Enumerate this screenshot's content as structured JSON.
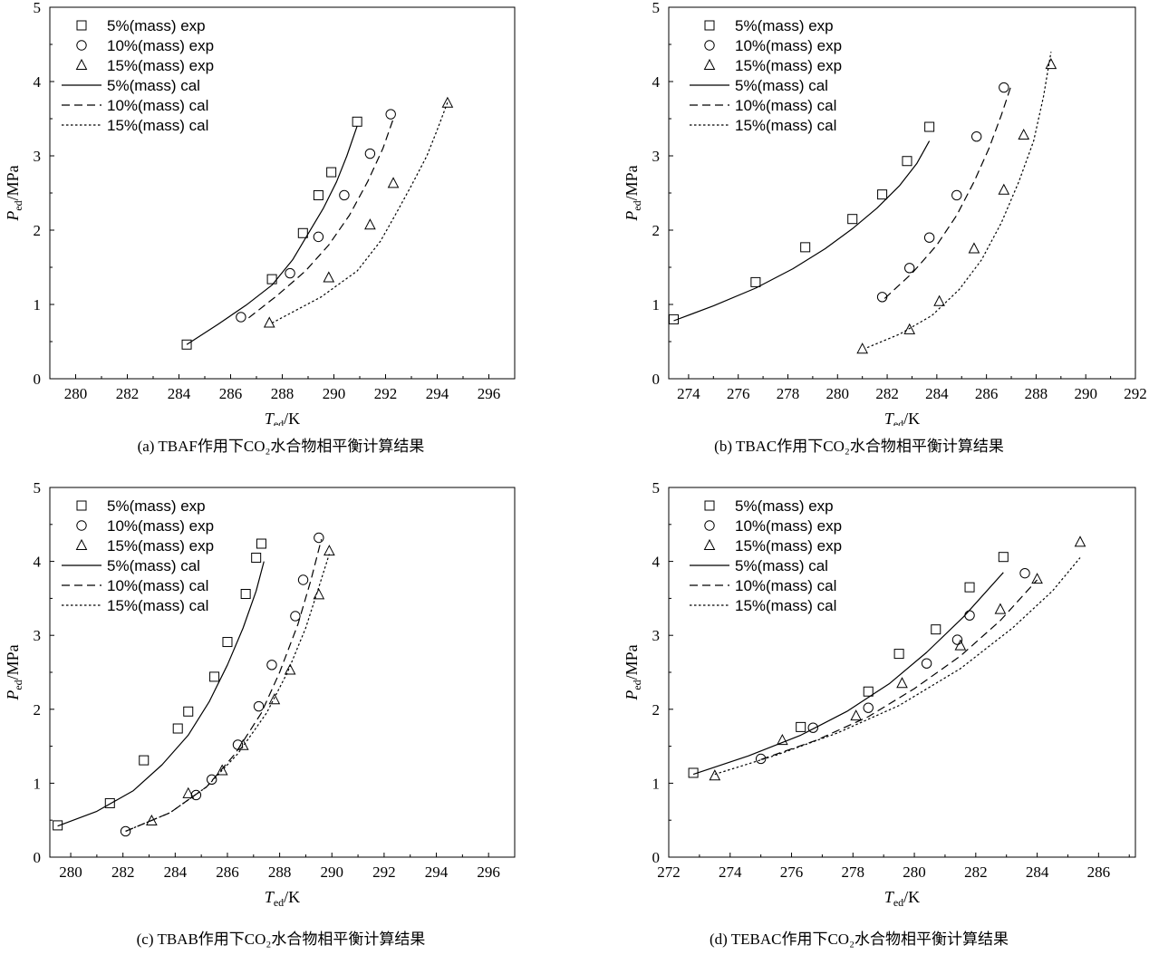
{
  "figure_labels": {
    "yaxis_main": "P",
    "yaxis_sub": "ed",
    "yaxis_unit": "/MPa",
    "xaxis_main": "T",
    "xaxis_sub": "ed",
    "xaxis_unit": "/K"
  },
  "chart_data": [
    {
      "id": "a",
      "type": "scatter+line",
      "caption": "(a) TBAF作用下CO₂水合物相平衡计算结果",
      "xlim": [
        279,
        297
      ],
      "ylim": [
        0,
        5
      ],
      "xticks": [
        280,
        282,
        284,
        286,
        288,
        290,
        292,
        294,
        296
      ],
      "yticks": [
        0,
        1,
        2,
        3,
        4,
        5
      ],
      "series": [
        {
          "name": "5%(mass) exp",
          "marker": "square",
          "x": [
            284.3,
            287.6,
            288.8,
            289.4,
            289.9,
            290.9
          ],
          "y": [
            0.46,
            1.34,
            1.96,
            2.47,
            2.78,
            3.46
          ]
        },
        {
          "name": "10%(mass) exp",
          "marker": "circle",
          "x": [
            286.4,
            288.3,
            289.4,
            290.4,
            291.4,
            292.2
          ],
          "y": [
            0.83,
            1.42,
            1.91,
            2.47,
            3.03,
            3.56
          ]
        },
        {
          "name": "15%(mass) exp",
          "marker": "triangle",
          "x": [
            287.5,
            289.8,
            291.4,
            292.3,
            294.4
          ],
          "y": [
            0.75,
            1.36,
            2.07,
            2.63,
            3.71
          ]
        },
        {
          "name": "5%(mass) cal",
          "line": "solid",
          "x": [
            284.3,
            285.5,
            286.6,
            287.6,
            288.4,
            289.0,
            289.6,
            290.1,
            290.5,
            290.9
          ],
          "y": [
            0.46,
            0.73,
            0.99,
            1.26,
            1.6,
            1.95,
            2.3,
            2.65,
            3.0,
            3.4
          ]
        },
        {
          "name": "10%(mass) cal",
          "line": "dashed",
          "x": [
            286.7,
            287.8,
            288.9,
            289.8,
            290.6,
            291.3,
            291.9,
            292.3
          ],
          "y": [
            0.82,
            1.12,
            1.45,
            1.8,
            2.2,
            2.65,
            3.1,
            3.5
          ]
        },
        {
          "name": "15%(mass) cal",
          "line": "dotted",
          "x": [
            287.6,
            289.5,
            290.9,
            291.8,
            292.4,
            293.0,
            293.6,
            294.0,
            294.4
          ],
          "y": [
            0.75,
            1.1,
            1.45,
            1.85,
            2.22,
            2.6,
            3.0,
            3.35,
            3.72
          ]
        }
      ]
    },
    {
      "id": "b",
      "type": "scatter+line",
      "caption": "(b) TBAC作用下CO₂水合物相平衡计算结果",
      "xlim": [
        273.2,
        292
      ],
      "ylim": [
        0,
        5
      ],
      "xticks": [
        274,
        276,
        278,
        280,
        282,
        284,
        286,
        288,
        290,
        292
      ],
      "yticks": [
        0,
        1,
        2,
        3,
        4,
        5
      ],
      "series": [
        {
          "name": "5%(mass) exp",
          "marker": "square",
          "x": [
            273.4,
            276.7,
            278.7,
            280.6,
            281.8,
            282.8,
            283.7
          ],
          "y": [
            0.8,
            1.3,
            1.77,
            2.15,
            2.48,
            2.93,
            3.39
          ]
        },
        {
          "name": "10%(mass) exp",
          "marker": "circle",
          "x": [
            281.8,
            282.9,
            283.7,
            284.8,
            285.6,
            286.7
          ],
          "y": [
            1.1,
            1.49,
            1.9,
            2.47,
            3.26,
            3.92
          ]
        },
        {
          "name": "15%(mass) exp",
          "marker": "triangle",
          "x": [
            281.0,
            282.9,
            284.1,
            285.5,
            286.7,
            287.5,
            288.6
          ],
          "y": [
            0.4,
            0.66,
            1.04,
            1.75,
            2.54,
            3.28,
            4.23
          ]
        },
        {
          "name": "5%(mass) cal",
          "line": "solid",
          "x": [
            273.4,
            275.0,
            276.7,
            278.2,
            279.5,
            280.6,
            281.6,
            282.5,
            283.2,
            283.7
          ],
          "y": [
            0.78,
            0.98,
            1.22,
            1.48,
            1.75,
            2.02,
            2.3,
            2.6,
            2.9,
            3.2
          ]
        },
        {
          "name": "10%(mass) cal",
          "line": "dashed",
          "x": [
            281.9,
            283.0,
            284.0,
            284.8,
            285.5,
            286.1,
            286.6,
            287.0
          ],
          "y": [
            1.08,
            1.42,
            1.8,
            2.2,
            2.65,
            3.1,
            3.55,
            3.95
          ]
        },
        {
          "name": "15%(mass) cal",
          "line": "dotted",
          "x": [
            281.2,
            282.5,
            283.8,
            284.9,
            285.8,
            286.6,
            287.3,
            287.9,
            288.3,
            288.6
          ],
          "y": [
            0.42,
            0.6,
            0.85,
            1.2,
            1.6,
            2.1,
            2.65,
            3.2,
            3.8,
            4.4
          ]
        }
      ]
    },
    {
      "id": "c",
      "type": "scatter+line",
      "caption": "(c) TBAB作用下CO₂水合物相平衡计算结果",
      "xlim": [
        279.2,
        297
      ],
      "ylim": [
        0,
        5
      ],
      "xticks": [
        280,
        282,
        284,
        286,
        288,
        290,
        292,
        294,
        296
      ],
      "yticks": [
        0,
        1,
        2,
        3,
        4,
        5
      ],
      "series": [
        {
          "name": "5%(mass) exp",
          "marker": "square",
          "x": [
            279.5,
            281.5,
            282.8,
            284.1,
            284.5,
            285.5,
            286.0,
            286.7,
            287.1,
            287.3
          ],
          "y": [
            0.43,
            0.73,
            1.31,
            1.74,
            1.97,
            2.44,
            2.91,
            3.56,
            4.05,
            4.24
          ]
        },
        {
          "name": "10%(mass) exp",
          "marker": "circle",
          "x": [
            282.1,
            284.8,
            285.4,
            286.4,
            287.2,
            287.7,
            288.6,
            288.9,
            289.5
          ],
          "y": [
            0.35,
            0.84,
            1.05,
            1.52,
            2.04,
            2.6,
            3.26,
            3.75,
            4.32
          ]
        },
        {
          "name": "15%(mass) exp",
          "marker": "triangle",
          "x": [
            283.1,
            284.5,
            285.8,
            286.6,
            287.8,
            288.4,
            289.5,
            289.9
          ],
          "y": [
            0.49,
            0.86,
            1.17,
            1.51,
            2.13,
            2.53,
            3.55,
            4.14
          ]
        },
        {
          "name": "5%(mass) cal",
          "line": "solid",
          "x": [
            279.5,
            281.0,
            282.4,
            283.5,
            284.5,
            285.3,
            286.0,
            286.6,
            287.1,
            287.4
          ],
          "y": [
            0.42,
            0.62,
            0.9,
            1.25,
            1.65,
            2.1,
            2.6,
            3.1,
            3.6,
            4.0
          ]
        },
        {
          "name": "10%(mass) cal",
          "line": "dashed",
          "x": [
            282.1,
            283.8,
            285.2,
            286.3,
            287.3,
            288.0,
            288.7,
            289.2,
            289.6
          ],
          "y": [
            0.35,
            0.6,
            0.95,
            1.4,
            1.95,
            2.5,
            3.15,
            3.75,
            4.3
          ]
        },
        {
          "name": "15%(mass) cal",
          "line": "dotted",
          "x": [
            282.1,
            283.8,
            285.2,
            286.4,
            287.5,
            288.3,
            289.0,
            289.5,
            289.9
          ],
          "y": [
            0.35,
            0.6,
            0.95,
            1.4,
            1.95,
            2.5,
            3.1,
            3.65,
            4.1
          ]
        }
      ]
    },
    {
      "id": "d",
      "type": "scatter+line",
      "caption": "(d) TEBAC作用下CO₂水合物相平衡计算结果",
      "xlim": [
        272,
        287.2
      ],
      "ylim": [
        0,
        5
      ],
      "xticks": [
        272,
        274,
        276,
        278,
        280,
        282,
        284,
        286
      ],
      "yticks": [
        0,
        1,
        2,
        3,
        4,
        5
      ],
      "series": [
        {
          "name": "5%(mass) exp",
          "marker": "square",
          "x": [
            272.8,
            276.3,
            278.5,
            279.5,
            280.7,
            281.8,
            282.9
          ],
          "y": [
            1.14,
            1.76,
            2.24,
            2.75,
            3.08,
            3.65,
            4.06
          ]
        },
        {
          "name": "10%(mass) exp",
          "marker": "circle",
          "x": [
            275.0,
            276.7,
            278.5,
            280.4,
            281.4,
            281.8,
            283.6
          ],
          "y": [
            1.33,
            1.75,
            2.02,
            2.62,
            2.94,
            3.27,
            3.84
          ]
        },
        {
          "name": "15%(mass) exp",
          "marker": "triangle",
          "x": [
            273.5,
            275.7,
            278.1,
            279.6,
            281.5,
            282.8,
            284.0,
            285.4
          ],
          "y": [
            1.1,
            1.58,
            1.91,
            2.35,
            2.86,
            3.35,
            3.76,
            4.26
          ]
        },
        {
          "name": "5%(mass) cal",
          "line": "solid",
          "x": [
            272.8,
            274.6,
            276.3,
            277.8,
            279.2,
            280.4,
            281.6,
            282.9
          ],
          "y": [
            1.12,
            1.37,
            1.65,
            1.97,
            2.35,
            2.77,
            3.25,
            3.85
          ]
        },
        {
          "name": "10%(mass) cal",
          "line": "dashed",
          "x": [
            275.0,
            276.8,
            278.5,
            280.0,
            281.5,
            282.8,
            284.0
          ],
          "y": [
            1.32,
            1.58,
            1.9,
            2.28,
            2.72,
            3.2,
            3.75
          ]
        },
        {
          "name": "15%(mass) cal",
          "line": "dotted",
          "x": [
            273.5,
            275.5,
            277.5,
            279.5,
            281.5,
            283.2,
            284.5,
            285.4
          ],
          "y": [
            1.12,
            1.38,
            1.68,
            2.05,
            2.55,
            3.1,
            3.6,
            4.05
          ]
        }
      ]
    }
  ]
}
